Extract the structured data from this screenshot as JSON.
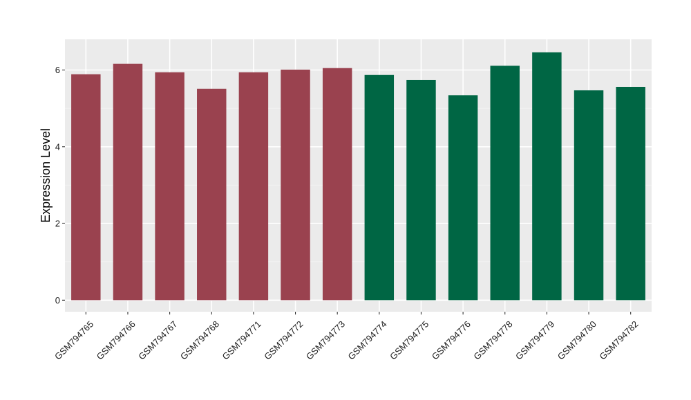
{
  "chart_data": {
    "type": "bar",
    "title": "",
    "xlabel": "",
    "ylabel": "Expression Level",
    "ylim": [
      -0.3,
      6.8
    ],
    "yticks": [
      0,
      2,
      4,
      6
    ],
    "grid": true,
    "legend": "none",
    "categories": [
      "GSM794765",
      "GSM794766",
      "GSM794767",
      "GSM794768",
      "GSM794771",
      "GSM794772",
      "GSM794773",
      "GSM794774",
      "GSM794775",
      "GSM794776",
      "GSM794778",
      "GSM794779",
      "GSM794780",
      "GSM794782"
    ],
    "values": [
      5.89,
      6.16,
      5.94,
      5.51,
      5.94,
      6.01,
      6.05,
      5.87,
      5.74,
      5.34,
      6.11,
      6.46,
      5.47,
      5.56
    ],
    "groups": [
      0,
      0,
      0,
      0,
      0,
      0,
      0,
      1,
      1,
      1,
      1,
      1,
      1,
      1
    ],
    "group_colors": [
      "#9a424f",
      "#006644"
    ]
  },
  "colors": {
    "panel_background": "#ebebeb",
    "grid_major": "#ffffff",
    "grid_minor": "#f4f4f4"
  }
}
